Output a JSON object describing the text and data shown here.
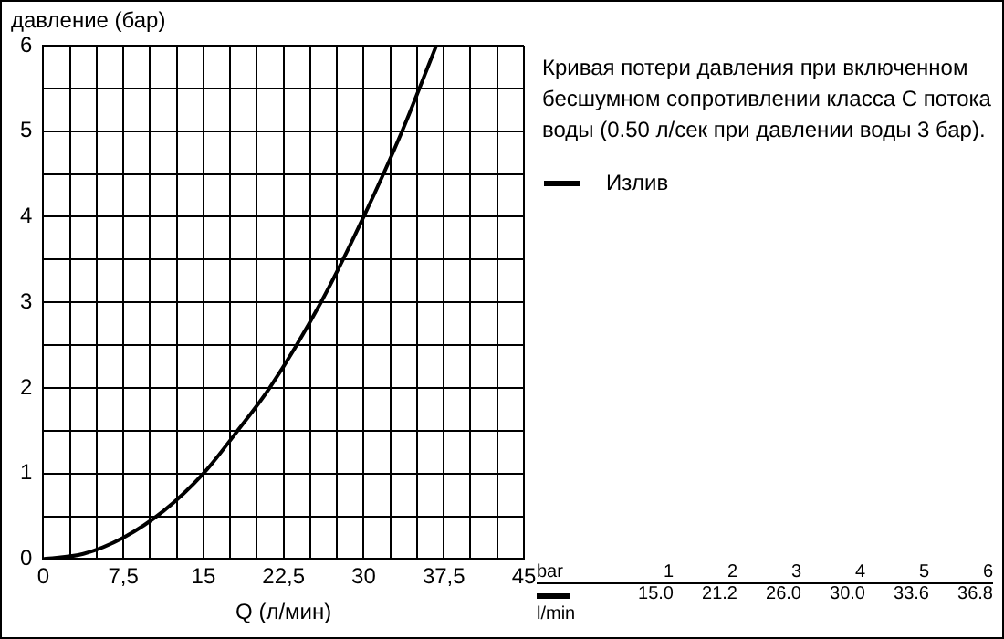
{
  "chart_data": {
    "type": "line",
    "title": "Кривая потери давления при включенном бесшумном сопротивлении класса С потока воды (0.50 л/сек при давлении воды 3 бар).",
    "xlabel": "Q (л/мин)",
    "ylabel": "давление (бар)",
    "annotations": [
      "bar",
      "1",
      "2",
      "3",
      "4",
      "5",
      "6",
      "15.0",
      "21.2",
      "26.0",
      "30.0",
      "33.6",
      "36.8",
      "l/min"
    ],
    "series": [
      {
        "name": "Излив",
        "color": "#000000",
        "x": [
          0,
          3.75,
          7.5,
          11.25,
          15.0,
          18.2,
          21.2,
          26.0,
          30.0,
          33.6,
          36.8
        ],
        "values": [
          0,
          0.06,
          0.25,
          0.56,
          1,
          1.5,
          2,
          3,
          4,
          5,
          6
        ]
      }
    ],
    "xlim": [
      0,
      45
    ],
    "xticks": [
      0,
      {
        "value": 2.5,
        "label": null
      },
      {
        "value": 5,
        "label": null
      },
      {
        "value": 7.5,
        "label": "7,5"
      },
      {
        "value": 10,
        "label": null
      },
      {
        "value": 12.5,
        "label": null
      },
      15,
      {
        "value": 17.5,
        "label": null
      },
      {
        "value": 20,
        "label": null
      },
      {
        "value": 22.5,
        "label": "22,5"
      },
      {
        "value": 25,
        "label": null
      },
      {
        "value": 27.5,
        "label": null
      },
      30,
      {
        "value": 32.5,
        "label": null
      },
      {
        "value": 35,
        "label": null
      },
      {
        "value": 37.5,
        "label": "37,5"
      },
      {
        "value": 40,
        "label": null
      },
      {
        "value": 42.5,
        "label": null
      },
      45
    ],
    "ylim": [
      0,
      6
    ],
    "yticks": [
      0,
      {
        "value": 0.5,
        "label": null
      },
      1,
      {
        "value": 1.5,
        "label": null
      },
      2,
      {
        "value": 2.5,
        "label": null
      },
      3,
      {
        "value": 3.5,
        "label": null
      },
      4,
      {
        "value": 4.5,
        "label": null
      },
      5,
      {
        "value": 5.5,
        "label": null
      },
      6
    ],
    "grid": true,
    "legend": "right",
    "marker": "none",
    "line_style": "solid"
  }
}
